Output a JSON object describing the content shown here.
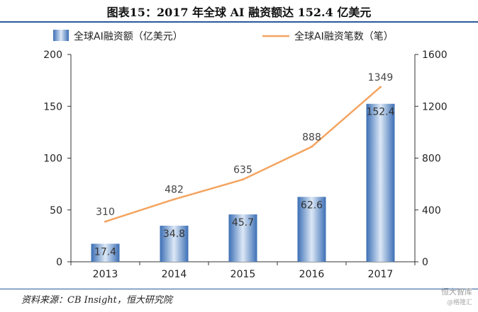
{
  "title": "图表15：2017 年全球 AI 融资额达 152.4 亿美元",
  "source": "资料来源：CB Insight，恒大研究院",
  "watermark": {
    "main": "恒大智库",
    "sub": "@格隆汇"
  },
  "colors": {
    "bar": "#4a7fc4",
    "bar_light": "#dce8f6",
    "line": "#f4a460",
    "rule": "#2a5a9a"
  },
  "chart_data": {
    "type": "bar",
    "categories": [
      "2013",
      "2014",
      "2015",
      "2016",
      "2017"
    ],
    "series": [
      {
        "name": "全球AI融资额（亿美元）",
        "type": "bar",
        "axis": "left",
        "values": [
          17.4,
          34.8,
          45.7,
          62.6,
          152.4
        ],
        "labels": [
          "17.4",
          "34.8",
          "45.7",
          "62.6",
          "152.4"
        ]
      },
      {
        "name": "全球AI融资笔数（笔）",
        "type": "line",
        "axis": "right",
        "values": [
          310,
          482,
          635,
          888,
          1349
        ],
        "labels": [
          "310",
          "482",
          "635",
          "888",
          "1349"
        ]
      }
    ],
    "left_axis": {
      "min": 0,
      "max": 200,
      "ticks": [
        0,
        50,
        100,
        150,
        200
      ]
    },
    "right_axis": {
      "min": 0,
      "max": 1600,
      "ticks": [
        0,
        400,
        800,
        1200,
        1600
      ]
    },
    "legend_position": "top"
  }
}
